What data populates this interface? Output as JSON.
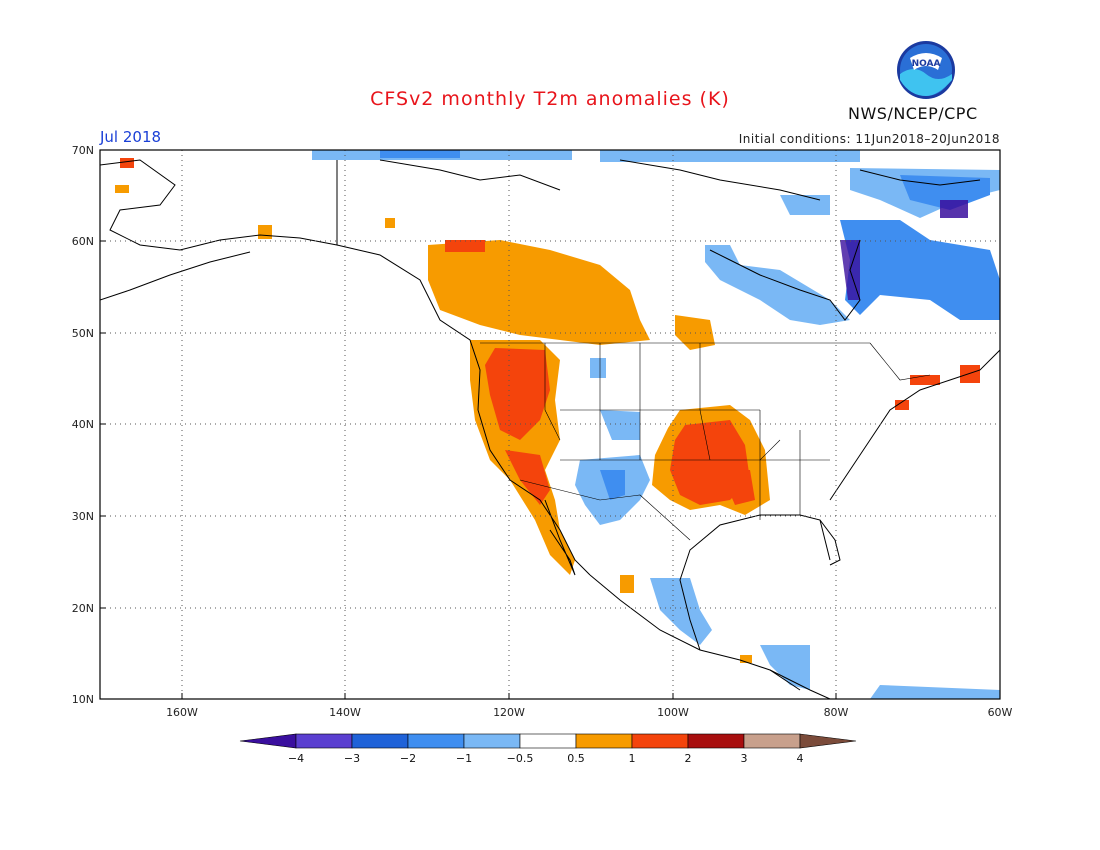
{
  "title": "CFSv2 monthly T2m anomalies (K)",
  "month": "Jul 2018",
  "initial_conditions": "Initial conditions: 11Jun2018–20Jun2018",
  "agency": "NWS/NCEP/CPC",
  "logo_text": "NOAA",
  "lat_labels": [
    "70N",
    "60N",
    "50N",
    "40N",
    "30N",
    "20N",
    "10N"
  ],
  "lon_labels": [
    "160W",
    "140W",
    "120W",
    "100W",
    "80W",
    "60W"
  ],
  "colorbar": {
    "labels": [
      "−4",
      "−3",
      "−2",
      "−1",
      "−0.5",
      "0.5",
      "1",
      "2",
      "3",
      "4"
    ],
    "colors": [
      "#3a0f9e",
      "#5a3fd0",
      "#1f62d8",
      "#3f8ef0",
      "#7ab8f5",
      "#ffffff",
      "#f79b00",
      "#f4440c",
      "#a80e0e",
      "#c8a08c",
      "#7b4b3a"
    ]
  },
  "colors": {
    "title": "#e8141b",
    "month": "#1a3fd6",
    "land_outline": "#000000"
  }
}
